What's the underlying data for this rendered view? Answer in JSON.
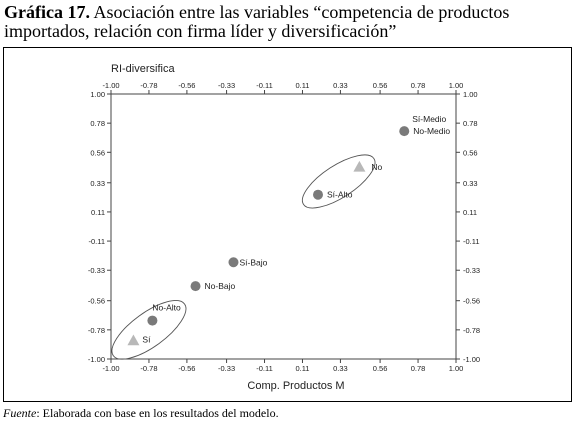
{
  "figure": {
    "label": "Gráfica 17.",
    "title": "Asociación entre las variables “competencia de productos importados, relación con firma líder y diversificación”"
  },
  "source": {
    "label": "Fuente",
    "text": ": Elaborada con base en los resultados del modelo."
  },
  "chart_data": {
    "type": "scatter",
    "xlabel": "Comp. Productos M",
    "ylabel": "RI-diversifica",
    "xlim": [
      -1.0,
      1.0
    ],
    "ylim": [
      -1.0,
      1.0
    ],
    "x_ticks": [
      "-1.00",
      "-0.78",
      "-0.56",
      "-0.33",
      "-0.11",
      "0.11",
      "0.33",
      "0.56",
      "0.78",
      "1.00"
    ],
    "y_ticks": [
      "1.00",
      "0.78",
      "0.56",
      "0.33",
      "0.11",
      "-0.11",
      "-0.33",
      "-0.56",
      "-0.78",
      "-1.00"
    ],
    "grid": false,
    "points": [
      {
        "label": "Sí-Medio",
        "x": 0.7,
        "y": 0.72,
        "marker": "circle"
      },
      {
        "label": "No-Medio",
        "x": 0.7,
        "y": 0.72,
        "marker": "circle"
      },
      {
        "label": "No",
        "x": 0.44,
        "y": 0.45,
        "marker": "triangle"
      },
      {
        "label": "Sí-Alto",
        "x": 0.2,
        "y": 0.24,
        "marker": "circle"
      },
      {
        "label": "Sí-Bajo",
        "x": -0.29,
        "y": -0.27,
        "marker": "circle"
      },
      {
        "label": "No-Bajo",
        "x": -0.51,
        "y": -0.45,
        "marker": "circle"
      },
      {
        "label": "No-Alto",
        "x": -0.76,
        "y": -0.71,
        "marker": "circle"
      },
      {
        "label": "Sí",
        "x": -0.87,
        "y": -0.86,
        "marker": "triangle"
      }
    ],
    "colors": {
      "circle": "#7a7a7a",
      "triangle": "#b8b8b8",
      "axis": "#444444"
    }
  }
}
